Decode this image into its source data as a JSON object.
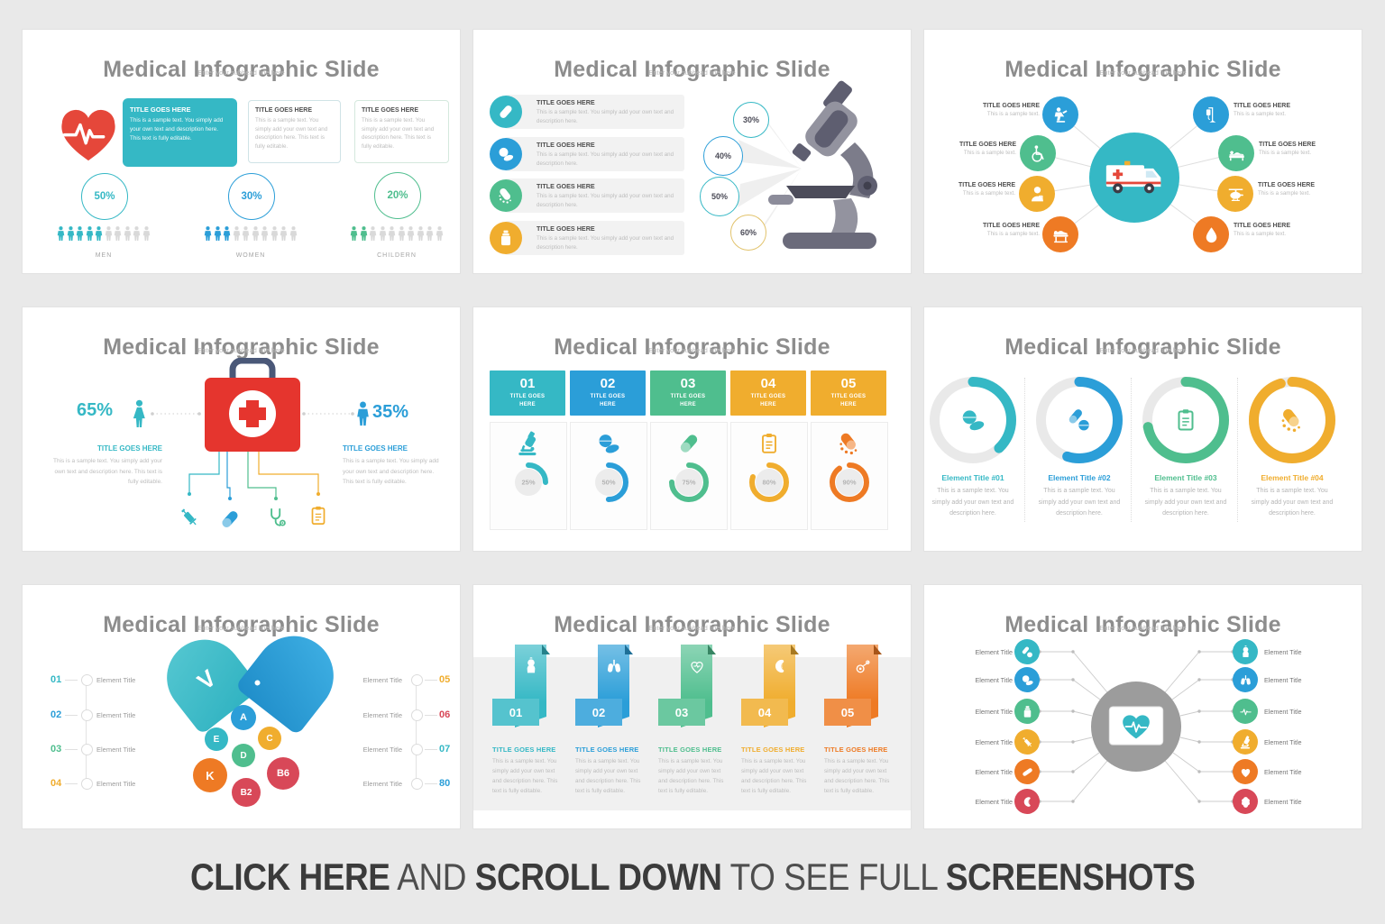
{
  "palette": {
    "teal": "#35b8c5",
    "blue": "#2b9ed8",
    "green": "#4fbe8e",
    "amber": "#f0ad2e",
    "orange": "#ee7a24",
    "red": "#e5473a",
    "crimson": "#d84858",
    "gold": "#e2c36c",
    "slate": "#5e5e70",
    "gray": "#9c9c9c"
  },
  "shared": {
    "slide_title": "Medical Infographic Slide",
    "slide_subtitle": "Enter your subhead line here",
    "tgh": "TITLE GOES HERE",
    "element_title": "Element Title"
  },
  "slide1": {
    "boxes": [
      {
        "title": "TITLE GOES HERE",
        "body": "This is a sample text. You simply add your own text and description here. This text is fully editable."
      },
      {
        "title": "TITLE GOES HERE",
        "body": "This is a sample text. You simply add your own text and description here. This text is fully editable."
      },
      {
        "title": "TITLE GOES HERE",
        "body": "This is a sample text. You simply add your own text and description here. This text is fully editable."
      }
    ],
    "stats": [
      {
        "pct": "50%",
        "label": "MEN",
        "color": "teal",
        "filled": 5,
        "total": 10
      },
      {
        "pct": "30%",
        "label": "WOMEN",
        "color": "blue",
        "filled": 3,
        "total": 10
      },
      {
        "pct": "20%",
        "label": "CHILDERN",
        "color": "green",
        "filled": 2,
        "total": 10
      }
    ]
  },
  "slide2": {
    "items": [
      {
        "title": "TITLE GOES HERE",
        "body": "This is a sample text. You simply add your own text and description here.",
        "color": "teal"
      },
      {
        "title": "TITLE GOES HERE",
        "body": "This is a sample text. You simply add your own text and description here.",
        "color": "blue"
      },
      {
        "title": "TITLE GOES HERE",
        "body": "This is a sample text. You simply add your own text and description here.",
        "color": "green"
      },
      {
        "title": "TITLE GOES HERE",
        "body": "This is a sample text. You simply add your own text and description here.",
        "color": "amber"
      }
    ],
    "circles": [
      {
        "pct": "30%",
        "color": "teal"
      },
      {
        "pct": "40%",
        "color": "blue"
      },
      {
        "pct": "50%",
        "color": "teal"
      },
      {
        "pct": "60%",
        "color": "gold"
      }
    ]
  },
  "slide3": {
    "left": [
      {
        "title": "TITLE GOES HERE",
        "body": "This is a sample text.",
        "color": "blue"
      },
      {
        "title": "TITLE GOES HERE",
        "body": "This is a sample text.",
        "color": "green"
      },
      {
        "title": "TITLE GOES HERE",
        "body": "This is a sample text.",
        "color": "amber"
      },
      {
        "title": "TITLE GOES HERE",
        "body": "This is a sample text.",
        "color": "orange"
      }
    ],
    "right": [
      {
        "title": "TITLE GOES HERE",
        "body": "This is a sample text.",
        "color": "blue"
      },
      {
        "title": "TITLE GOES HERE",
        "body": "This is a sample text.",
        "color": "green"
      },
      {
        "title": "TITLE GOES HERE",
        "body": "This is a sample text.",
        "color": "amber"
      },
      {
        "title": "TITLE GOES HERE",
        "body": "This is a sample text.",
        "color": "orange"
      }
    ]
  },
  "slide4": {
    "left": {
      "pct": "65%",
      "title": "TITLE GOES HERE",
      "body": "This is a sample text. You simply add your own text and description here. This text is fully editable.",
      "color": "teal"
    },
    "right": {
      "pct": "35%",
      "title": "TITLE GOES HERE",
      "body": "This is a sample text. You simply add your own text and description here. This text is fully editable.",
      "color": "blue"
    }
  },
  "slide5": {
    "cols": [
      {
        "num": "01",
        "head": "TITLE GOES HERE",
        "color": "teal",
        "dcolor": "teal",
        "pct": 25
      },
      {
        "num": "02",
        "head": "TITLE GOES HERE",
        "color": "blue",
        "dcolor": "blue",
        "pct": 50
      },
      {
        "num": "03",
        "head": "TITLE GOES HERE",
        "color": "green",
        "dcolor": "green",
        "pct": 75
      },
      {
        "num": "04",
        "head": "TITLE GOES HERE",
        "color": "amber",
        "dcolor": "amber",
        "pct": 80
      },
      {
        "num": "05",
        "head": "TITLE GOES HERE",
        "color": "amber",
        "dcolor": "orange",
        "pct": 90
      }
    ]
  },
  "slide6": {
    "items": [
      {
        "title": "Element Title #01",
        "color": "teal",
        "pct": 38,
        "body": "This is a sample text. You simply add your own text and description here."
      },
      {
        "title": "Element Title #02",
        "color": "blue",
        "pct": 55,
        "body": "This is a sample text. You simply add your own text and description here."
      },
      {
        "title": "Element Title #03",
        "color": "green",
        "pct": 72,
        "body": "This is a sample text. You simply add your own text and description here."
      },
      {
        "title": "Element Title #04",
        "color": "amber",
        "pct": 95,
        "body": "This is a sample text. You simply add your own text and description here."
      }
    ]
  },
  "slide7": {
    "label": "Element Title",
    "left": [
      {
        "num": "01",
        "color": "teal"
      },
      {
        "num": "02",
        "color": "blue"
      },
      {
        "num": "03",
        "color": "green"
      },
      {
        "num": "04",
        "color": "amber"
      }
    ],
    "right": [
      {
        "num": "05",
        "color": "amber"
      },
      {
        "num": "06",
        "color": "crimson"
      },
      {
        "num": "07",
        "color": "teal"
      },
      {
        "num": "80",
        "color": "blue"
      }
    ],
    "vitamins": [
      {
        "t": "A",
        "color": "blue"
      },
      {
        "t": "E",
        "color": "teal"
      },
      {
        "t": "C",
        "color": "amber"
      },
      {
        "t": "D",
        "color": "green"
      },
      {
        "t": "K",
        "color": "orange"
      },
      {
        "t": "B2",
        "color": "crimson"
      },
      {
        "t": "B6",
        "color": "crimson"
      }
    ]
  },
  "slide8": {
    "title": "TITLE GOES HERE",
    "body": "This is a sample text. You simply add your own text and description here. This text is fully editable.",
    "ribbons": [
      {
        "num": "01",
        "color": "teal"
      },
      {
        "num": "02",
        "color": "blue"
      },
      {
        "num": "03",
        "color": "green"
      },
      {
        "num": "04",
        "color": "amber"
      },
      {
        "num": "05",
        "color": "orange"
      }
    ]
  },
  "slide9": {
    "label": "Element Title",
    "left": [
      {
        "color": "teal"
      },
      {
        "color": "blue"
      },
      {
        "color": "green"
      },
      {
        "color": "amber"
      },
      {
        "color": "orange"
      },
      {
        "color": "crimson"
      }
    ],
    "right": [
      {
        "color": "teal"
      },
      {
        "color": "blue"
      },
      {
        "color": "green"
      },
      {
        "color": "amber"
      },
      {
        "color": "orange"
      },
      {
        "color": "crimson"
      }
    ]
  },
  "banner": {
    "segments": [
      {
        "t": "CLICK HERE",
        "bold": true
      },
      {
        "t": " AND ",
        "bold": false
      },
      {
        "t": "SCROLL DOWN",
        "bold": true
      },
      {
        "t": " TO SEE FULL ",
        "bold": false
      },
      {
        "t": "SCREENSHOTS",
        "bold": true
      }
    ]
  }
}
